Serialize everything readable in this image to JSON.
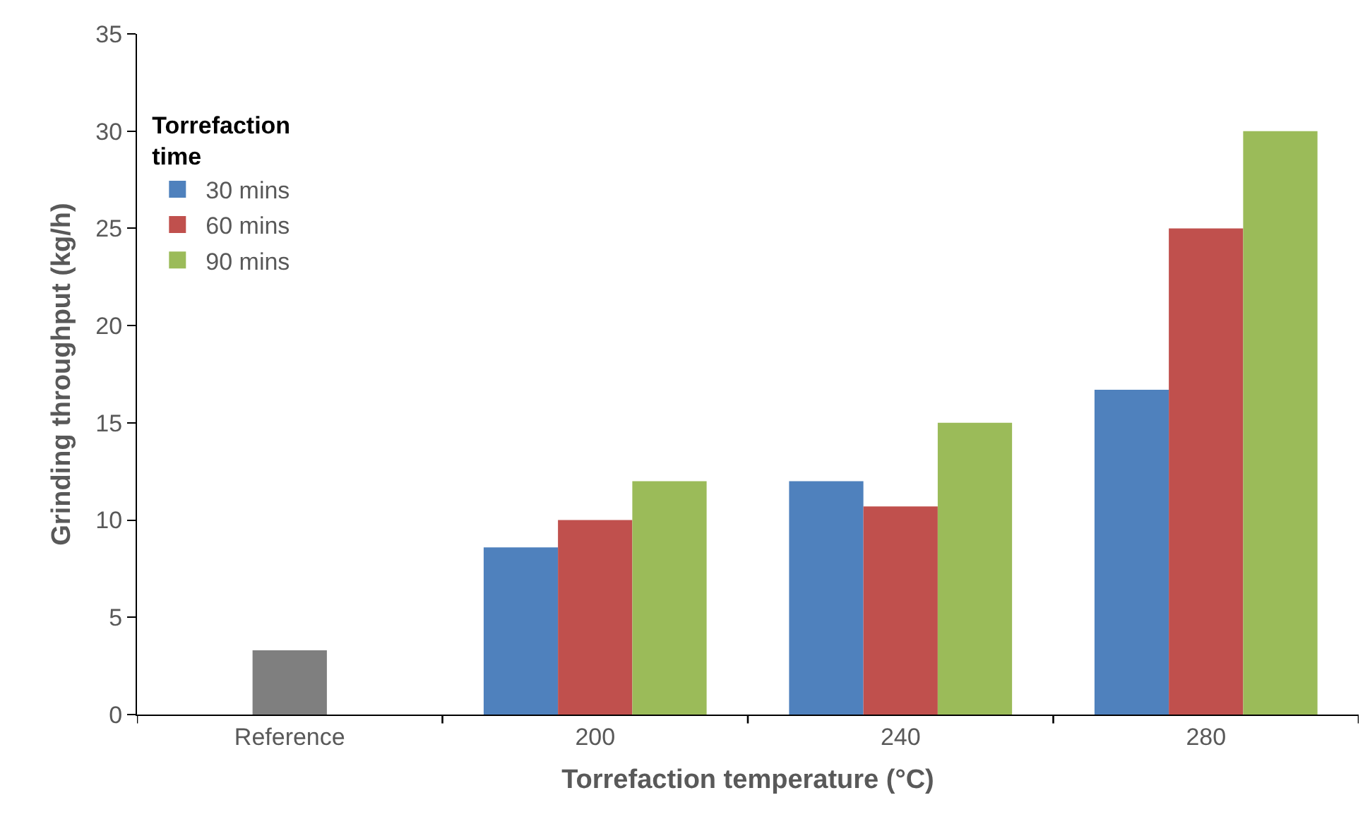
{
  "chart_data": {
    "type": "bar",
    "xlabel": "Torrefaction temperature (°C)",
    "ylabel": "Grinding throughput (kg/h)",
    "legend_title": "Torrefaction time",
    "categories": [
      "Reference",
      "200",
      "240",
      "280"
    ],
    "series": [
      {
        "name": "30 mins",
        "color": "#4f81bd",
        "values": [
          null,
          8.6,
          12.0,
          16.7
        ]
      },
      {
        "name": "60 mins",
        "color": "#c0504d",
        "colors": [
          "#7f7f7f",
          "#c0504d",
          "#c0504d",
          "#c0504d"
        ],
        "values": [
          3.3,
          10.0,
          10.7,
          25.0
        ]
      },
      {
        "name": "90 mins",
        "color": "#9bbb59",
        "values": [
          null,
          12.0,
          15.0,
          30.0
        ]
      }
    ],
    "ylim": [
      0,
      35
    ],
    "yticks": [
      0,
      5,
      10,
      15,
      20,
      25,
      30,
      35
    ],
    "legend": "top left"
  }
}
